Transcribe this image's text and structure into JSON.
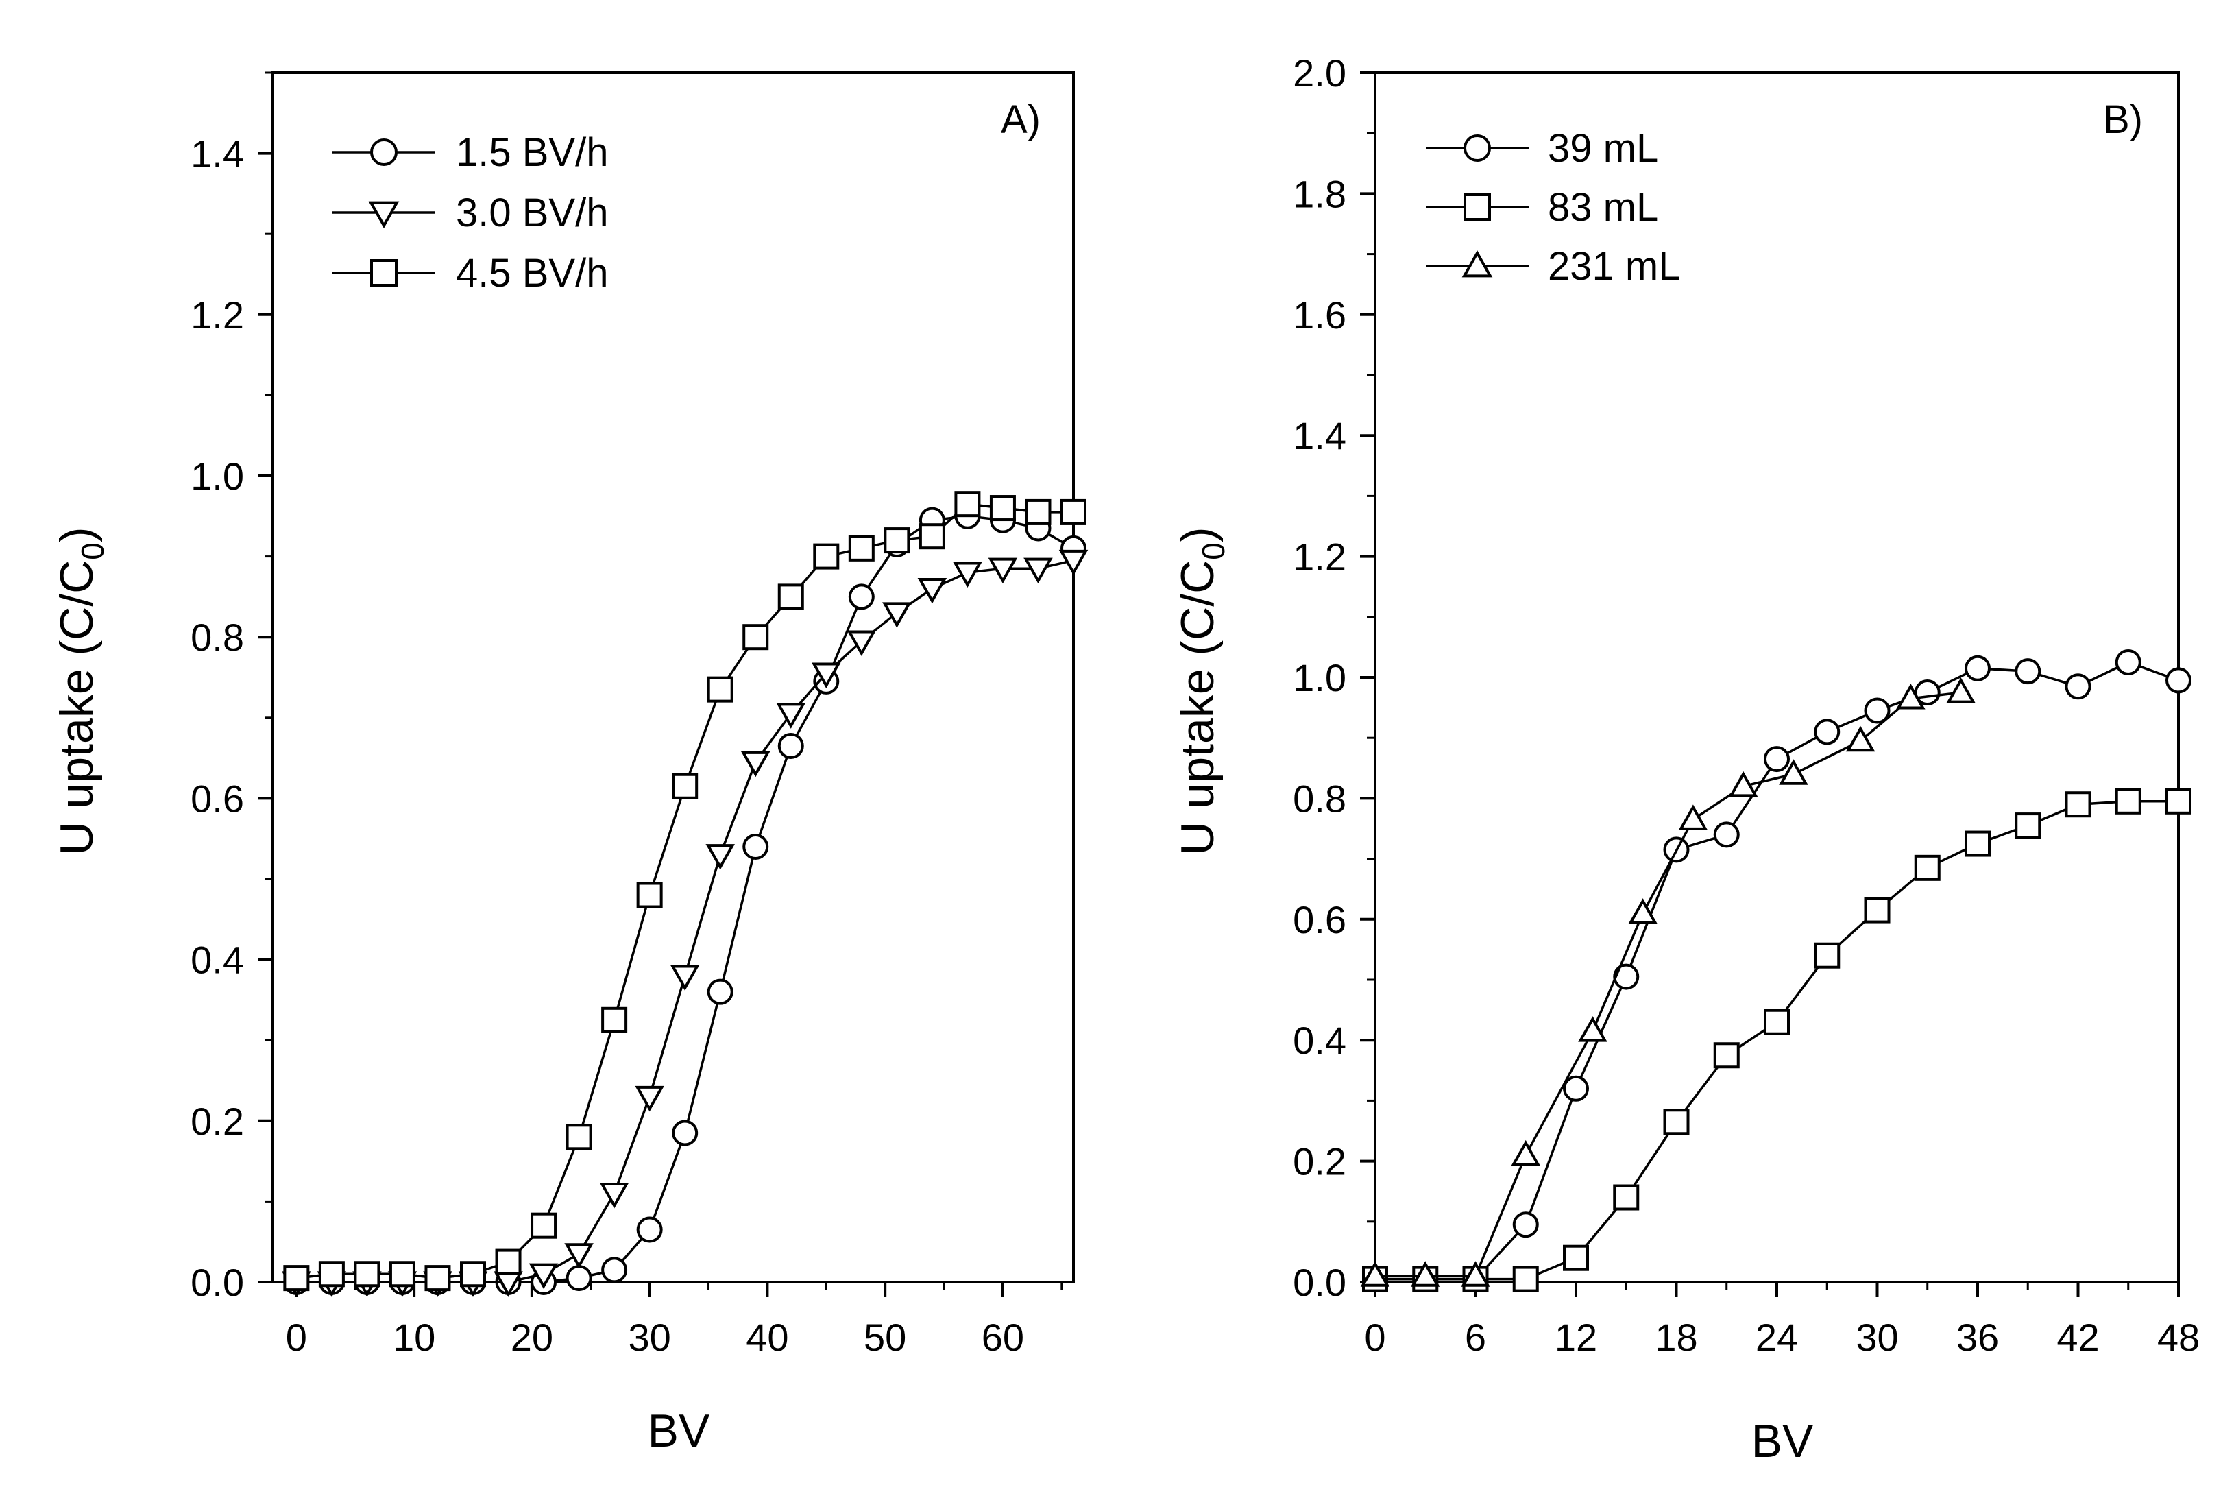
{
  "chart_data": [
    {
      "type": "line",
      "panel_label": "A)",
      "xlabel": "BV",
      "ylabel_main": "U uptake (C/C",
      "ylabel_sub": "0",
      "ylabel_close": ")",
      "xlim": [
        -2,
        66
      ],
      "ylim": [
        0,
        1.5
      ],
      "xticks": [
        0,
        10,
        20,
        30,
        40,
        50,
        60
      ],
      "xtick_labels": [
        "0",
        "10",
        "20",
        "30",
        "40",
        "50",
        "60"
      ],
      "yticks": [
        0,
        0.2,
        0.4,
        0.6,
        0.8,
        1.0,
        1.2,
        1.4
      ],
      "ytick_labels": [
        "0.0",
        "0.2",
        "0.4",
        "0.6",
        "0.8",
        "1.0",
        "1.2",
        "1.4"
      ],
      "legend_position": "top-left",
      "series": [
        {
          "name": "1.5 BV/h",
          "marker": "circle",
          "x": [
            0,
            3,
            6,
            9,
            12,
            15,
            18,
            21,
            24,
            27,
            30,
            33,
            36,
            39,
            42,
            45,
            48,
            51,
            54,
            57,
            60,
            63,
            66
          ],
          "y": [
            0.0,
            0.0,
            0.0,
            0.0,
            0.0,
            0.0,
            0.0,
            0.0,
            0.005,
            0.015,
            0.065,
            0.185,
            0.36,
            0.54,
            0.665,
            0.745,
            0.85,
            0.915,
            0.945,
            0.95,
            0.945,
            0.935,
            0.91
          ]
        },
        {
          "name": "3.0 BV/h",
          "marker": "triangle-down",
          "x": [
            0,
            3,
            6,
            9,
            12,
            15,
            18,
            21,
            24,
            27,
            30,
            33,
            36,
            39,
            42,
            45,
            48,
            51,
            54,
            57,
            60,
            63,
            66
          ],
          "y": [
            0.0,
            0.0,
            0.0,
            0.0,
            0.0,
            0.0,
            0.0,
            0.01,
            0.035,
            0.11,
            0.23,
            0.38,
            0.53,
            0.645,
            0.705,
            0.755,
            0.795,
            0.83,
            0.86,
            0.88,
            0.885,
            0.885,
            0.895
          ]
        },
        {
          "name": "4.5 BV/h",
          "marker": "square",
          "x": [
            0,
            3,
            6,
            9,
            12,
            15,
            18,
            21,
            24,
            27,
            30,
            33,
            36,
            39,
            42,
            45,
            48,
            51,
            54,
            57,
            60,
            63,
            66
          ],
          "y": [
            0.005,
            0.01,
            0.01,
            0.01,
            0.005,
            0.01,
            0.025,
            0.07,
            0.18,
            0.325,
            0.48,
            0.615,
            0.735,
            0.8,
            0.85,
            0.9,
            0.91,
            0.92,
            0.925,
            0.965,
            0.96,
            0.955,
            0.955
          ]
        }
      ]
    },
    {
      "type": "line",
      "panel_label": "B)",
      "xlabel": "BV",
      "ylabel_main": "U uptake (C/C",
      "ylabel_sub": "0",
      "ylabel_close": ")",
      "xlim": [
        0,
        48
      ],
      "ylim": [
        0,
        2.0
      ],
      "xticks": [
        0,
        6,
        12,
        18,
        24,
        30,
        36,
        42,
        48
      ],
      "xtick_labels": [
        "0",
        "6",
        "12",
        "18",
        "24",
        "30",
        "36",
        "42",
        "48"
      ],
      "yticks": [
        0,
        0.2,
        0.4,
        0.6,
        0.8,
        1.0,
        1.2,
        1.4,
        1.6,
        1.8,
        2.0
      ],
      "ytick_labels": [
        "0.0",
        "0.2",
        "0.4",
        "0.6",
        "0.8",
        "1.0",
        "1.2",
        "1.4",
        "1.6",
        "1.8",
        "2.0"
      ],
      "legend_position": "top-left",
      "series": [
        {
          "name": "39 mL",
          "marker": "circle",
          "x": [
            0,
            3,
            6,
            9,
            12,
            15,
            18,
            21,
            24,
            27,
            30,
            33,
            36,
            39,
            42,
            45,
            48
          ],
          "y": [
            0.005,
            0.005,
            0.005,
            0.095,
            0.32,
            0.505,
            0.715,
            0.74,
            0.865,
            0.91,
            0.945,
            0.975,
            1.015,
            1.01,
            0.985,
            1.025,
            0.995
          ]
        },
        {
          "name": "83 mL",
          "marker": "square",
          "x": [
            0,
            3,
            6,
            9,
            12,
            15,
            18,
            21,
            24,
            27,
            30,
            33,
            36,
            39,
            42,
            45,
            48
          ],
          "y": [
            0.005,
            0.005,
            0.005,
            0.005,
            0.04,
            0.14,
            0.265,
            0.375,
            0.43,
            0.54,
            0.615,
            0.685,
            0.725,
            0.755,
            0.79,
            0.795,
            0.795
          ]
        },
        {
          "name": "231 mL",
          "marker": "triangle-up",
          "x": [
            0,
            3,
            6,
            9,
            13,
            16,
            19,
            22,
            25,
            29,
            32,
            35
          ],
          "y": [
            0.01,
            0.01,
            0.01,
            0.21,
            0.415,
            0.61,
            0.765,
            0.82,
            0.84,
            0.895,
            0.965,
            0.975
          ]
        }
      ]
    }
  ]
}
